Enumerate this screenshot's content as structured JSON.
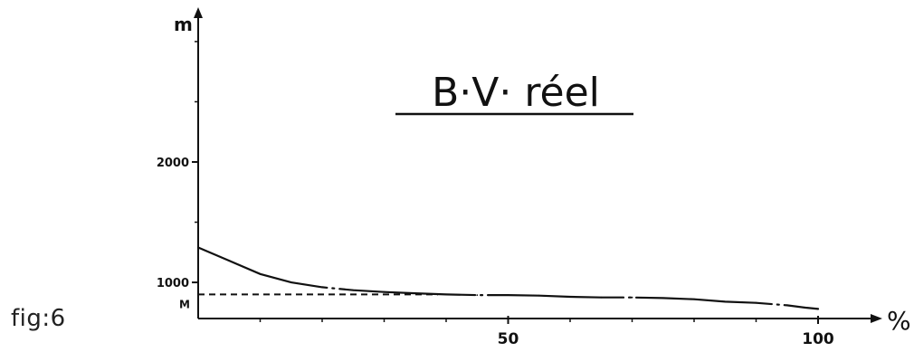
{
  "figure_label": "fig:6",
  "chart_data": {
    "type": "line",
    "title": "B·V· réel",
    "ylabel": "m",
    "xlabel": "%",
    "xlim": [
      0,
      100
    ],
    "ylim": [
      700,
      3300
    ],
    "x_ticks": [
      50,
      100
    ],
    "x_tick_labels": [
      "50",
      "100"
    ],
    "y_ticks": [
      1000,
      2000
    ],
    "y_tick_labels": [
      "1000",
      "2000"
    ],
    "grid": false,
    "mean_line": {
      "label": "M",
      "value": 900,
      "style": "dashed"
    },
    "series": [
      {
        "values_x": [
          0,
          5,
          10,
          15,
          20,
          25,
          30,
          35,
          40,
          45,
          50,
          55,
          60,
          65,
          70,
          75,
          80,
          85,
          90,
          95,
          98,
          100
        ],
        "values_y": [
          1290,
          1180,
          1070,
          1000,
          960,
          935,
          920,
          910,
          900,
          895,
          895,
          890,
          880,
          875,
          875,
          870,
          860,
          840,
          830,
          810,
          790,
          780
        ],
        "style": "dash-dot"
      }
    ]
  }
}
